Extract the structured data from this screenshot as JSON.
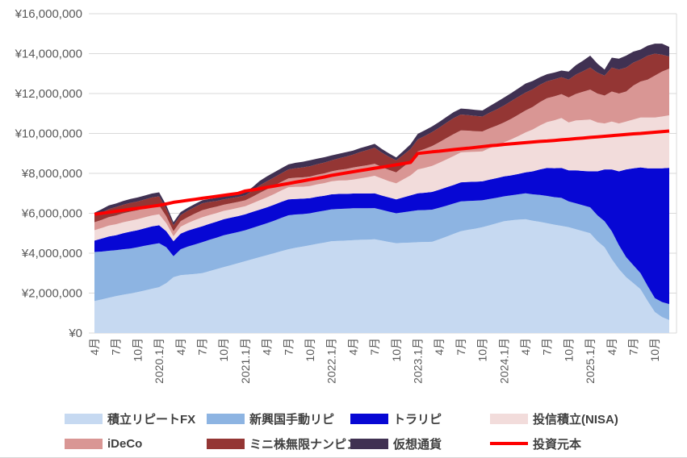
{
  "chart_data": {
    "type": "area",
    "subtype": "stacked-area-with-line",
    "title": "",
    "unit": "million_yen",
    "y_axis": {
      "min": 0,
      "max": 16000000,
      "step": 2000000,
      "tick_labels": [
        "¥0",
        "¥2,000,000",
        "¥4,000,000",
        "¥6,000,000",
        "¥8,000,000",
        "¥10,000,000",
        "¥12,000,000",
        "¥14,000,000",
        "¥16,000,000"
      ],
      "grid": true
    },
    "x_axis": {
      "start_month": "2019-04",
      "end_month": "2025-12",
      "points": 81,
      "tick_positions": [
        0,
        3,
        6,
        9,
        12,
        15,
        18,
        21,
        24,
        27,
        30,
        33,
        36,
        39,
        42,
        45,
        48,
        51,
        54,
        57,
        60,
        63,
        66,
        69,
        72,
        75,
        78
      ],
      "tick_labels": [
        "4月",
        "7月",
        "10月",
        "2020.1月",
        "4月",
        "7月",
        "10月",
        "2021.1月",
        "4月",
        "7月",
        "10月",
        "2022.1月",
        "4月",
        "7月",
        "10月",
        "2023.1月",
        "4月",
        "7月",
        "10月",
        "2024.1月",
        "4月",
        "7月",
        "10月",
        "2025.1月",
        "4月",
        "7月",
        "10月"
      ]
    },
    "series": [
      {
        "key": "fx_repeat",
        "label": "積立リピートFX",
        "color": "#c6d9f1",
        "values": [
          1.6,
          1.68,
          1.77,
          1.85,
          1.92,
          1.98,
          2.05,
          2.13,
          2.22,
          2.3,
          2.5,
          2.8,
          2.9,
          2.93,
          2.96,
          3.0,
          3.1,
          3.2,
          3.3,
          3.4,
          3.5,
          3.6,
          3.7,
          3.8,
          3.9,
          4.0,
          4.1,
          4.2,
          4.27,
          4.33,
          4.4,
          4.47,
          4.53,
          4.6,
          4.62,
          4.63,
          4.65,
          4.67,
          4.68,
          4.7,
          4.63,
          4.56,
          4.5,
          4.52,
          4.53,
          4.55,
          4.56,
          4.57,
          4.7,
          4.83,
          4.97,
          5.1,
          5.17,
          5.23,
          5.3,
          5.4,
          5.5,
          5.6,
          5.65,
          5.68,
          5.7,
          5.63,
          5.57,
          5.5,
          5.43,
          5.37,
          5.3,
          5.2,
          5.1,
          5.0,
          4.6,
          4.3,
          3.7,
          3.2,
          2.8,
          2.5,
          2.2,
          1.6,
          1.05,
          0.8,
          0.65
        ]
      },
      {
        "key": "emerging_repeat",
        "label": "新興国手動リピ",
        "color": "#8db4e2",
        "values": [
          2.46,
          2.4,
          2.35,
          2.3,
          2.28,
          2.25,
          2.25,
          2.24,
          2.22,
          2.2,
          1.8,
          1.05,
          1.3,
          1.4,
          1.48,
          1.55,
          1.57,
          1.58,
          1.6,
          1.58,
          1.56,
          1.55,
          1.57,
          1.58,
          1.6,
          1.63,
          1.67,
          1.7,
          1.67,
          1.63,
          1.6,
          1.6,
          1.6,
          1.6,
          1.6,
          1.6,
          1.6,
          1.58,
          1.57,
          1.56,
          1.54,
          1.52,
          1.5,
          1.53,
          1.57,
          1.6,
          1.6,
          1.61,
          1.58,
          1.55,
          1.52,
          1.5,
          1.45,
          1.4,
          1.35,
          1.32,
          1.28,
          1.25,
          1.25,
          1.27,
          1.3,
          1.32,
          1.35,
          1.37,
          1.38,
          1.4,
          1.3,
          1.3,
          1.3,
          1.3,
          1.3,
          1.3,
          1.4,
          1.2,
          1.0,
          0.9,
          0.8,
          0.75,
          0.7,
          0.75,
          0.8
        ]
      },
      {
        "key": "toraripi",
        "label": "トラリピ",
        "color": "#0707d4",
        "values": [
          0.57,
          0.65,
          0.72,
          0.75,
          0.8,
          0.85,
          0.85,
          0.88,
          0.9,
          0.9,
          0.8,
          0.75,
          0.78,
          0.8,
          0.8,
          0.8,
          0.8,
          0.8,
          0.8,
          0.8,
          0.8,
          0.8,
          0.8,
          0.8,
          0.8,
          0.8,
          0.8,
          0.8,
          0.78,
          0.77,
          0.76,
          0.76,
          0.75,
          0.75,
          0.75,
          0.74,
          0.74,
          0.74,
          0.74,
          0.74,
          0.72,
          0.71,
          0.7,
          0.75,
          0.8,
          0.85,
          0.87,
          0.89,
          0.9,
          0.92,
          0.93,
          0.95,
          0.95,
          0.95,
          0.95,
          0.97,
          0.98,
          1.0,
          1.0,
          1.02,
          1.05,
          1.15,
          1.28,
          1.4,
          1.45,
          1.5,
          1.55,
          1.65,
          1.72,
          1.8,
          2.2,
          2.6,
          3.1,
          3.7,
          4.4,
          4.85,
          5.3,
          5.9,
          6.5,
          6.7,
          6.83
        ]
      },
      {
        "key": "nisa",
        "label": "投信積立(NISA)",
        "color": "#f2dcdb",
        "values": [
          0.52,
          0.53,
          0.54,
          0.55,
          0.55,
          0.55,
          0.55,
          0.55,
          0.55,
          0.55,
          0.4,
          0.25,
          0.35,
          0.38,
          0.42,
          0.45,
          0.44,
          0.43,
          0.42,
          0.41,
          0.41,
          0.4,
          0.43,
          0.47,
          0.5,
          0.53,
          0.57,
          0.6,
          0.6,
          0.6,
          0.6,
          0.62,
          0.63,
          0.65,
          0.67,
          0.68,
          0.7,
          0.76,
          0.82,
          0.88,
          0.85,
          0.82,
          0.8,
          0.9,
          1.0,
          1.2,
          1.25,
          1.3,
          1.35,
          1.4,
          1.45,
          1.5,
          1.5,
          1.5,
          1.5,
          1.57,
          1.63,
          1.7,
          1.8,
          1.9,
          2.0,
          2.1,
          2.2,
          2.3,
          2.4,
          2.5,
          2.4,
          2.5,
          2.55,
          2.6,
          2.45,
          2.3,
          2.4,
          2.4,
          2.4,
          2.45,
          2.5,
          2.55,
          2.55,
          2.6,
          2.63
        ]
      },
      {
        "key": "ideco",
        "label": "iDeCo",
        "color": "#d99694",
        "values": [
          0.4,
          0.41,
          0.43,
          0.44,
          0.45,
          0.45,
          0.45,
          0.45,
          0.45,
          0.45,
          0.35,
          0.25,
          0.28,
          0.3,
          0.33,
          0.35,
          0.34,
          0.32,
          0.31,
          0.31,
          0.3,
          0.3,
          0.33,
          0.37,
          0.4,
          0.42,
          0.43,
          0.45,
          0.46,
          0.47,
          0.48,
          0.48,
          0.49,
          0.5,
          0.53,
          0.57,
          0.6,
          0.6,
          0.6,
          0.6,
          0.58,
          0.56,
          0.55,
          0.63,
          0.72,
          0.9,
          0.95,
          1.0,
          1.03,
          1.07,
          1.1,
          1.1,
          1.07,
          1.03,
          1.0,
          1.0,
          1.0,
          1.0,
          1.03,
          1.07,
          1.1,
          1.13,
          1.17,
          1.2,
          1.2,
          1.2,
          1.25,
          1.33,
          1.42,
          1.5,
          1.45,
          1.4,
          1.5,
          1.5,
          1.5,
          1.7,
          1.8,
          1.9,
          2.1,
          2.25,
          2.34
        ]
      },
      {
        "key": "mini_kabu",
        "label": "ミニ株無限ナンピン",
        "color": "#943634",
        "values": [
          0.32,
          0.36,
          0.4,
          0.42,
          0.43,
          0.44,
          0.44,
          0.44,
          0.45,
          0.45,
          0.38,
          0.3,
          0.3,
          0.32,
          0.33,
          0.35,
          0.32,
          0.29,
          0.27,
          0.26,
          0.25,
          0.25,
          0.3,
          0.38,
          0.4,
          0.42,
          0.43,
          0.45,
          0.48,
          0.5,
          0.52,
          0.53,
          0.54,
          0.55,
          0.58,
          0.62,
          0.65,
          0.72,
          0.76,
          0.8,
          0.72,
          0.66,
          0.6,
          0.6,
          0.6,
          0.6,
          0.65,
          0.7,
          0.73,
          0.77,
          0.8,
          0.8,
          0.78,
          0.77,
          0.75,
          0.78,
          0.82,
          0.85,
          0.89,
          0.9,
          0.9,
          0.88,
          0.87,
          0.85,
          0.85,
          0.85,
          0.9,
          0.97,
          1.03,
          1.1,
          1.05,
          1.0,
          1.2,
          1.2,
          1.2,
          1.15,
          1.1,
          1.2,
          1.1,
          0.85,
          0.61
        ]
      },
      {
        "key": "crypto",
        "label": "仮想通貨",
        "color": "#403152",
        "values": [
          0.16,
          0.17,
          0.18,
          0.18,
          0.19,
          0.2,
          0.2,
          0.2,
          0.2,
          0.2,
          0.17,
          0.15,
          0.15,
          0.15,
          0.15,
          0.15,
          0.15,
          0.15,
          0.15,
          0.15,
          0.15,
          0.15,
          0.18,
          0.22,
          0.25,
          0.25,
          0.25,
          0.25,
          0.27,
          0.28,
          0.3,
          0.28,
          0.27,
          0.25,
          0.23,
          0.22,
          0.2,
          0.2,
          0.2,
          0.2,
          0.18,
          0.17,
          0.15,
          0.19,
          0.24,
          0.28,
          0.28,
          0.28,
          0.29,
          0.29,
          0.3,
          0.3,
          0.3,
          0.3,
          0.3,
          0.33,
          0.37,
          0.4,
          0.4,
          0.42,
          0.45,
          0.42,
          0.38,
          0.35,
          0.34,
          0.33,
          0.4,
          0.47,
          0.53,
          0.6,
          0.45,
          0.3,
          0.5,
          0.55,
          0.6,
          0.55,
          0.5,
          0.5,
          0.5,
          0.55,
          0.48
        ]
      }
    ],
    "line": {
      "key": "principal",
      "label": "投資元本",
      "color": "#fe0000",
      "width": 4,
      "values": [
        5.95,
        6.0,
        6.05,
        6.1,
        6.15,
        6.2,
        6.25,
        6.3,
        6.35,
        6.4,
        6.47,
        6.55,
        6.6,
        6.65,
        6.7,
        6.75,
        6.8,
        6.85,
        6.9,
        6.95,
        7.0,
        7.12,
        7.17,
        7.23,
        7.3,
        7.36,
        7.43,
        7.49,
        7.56,
        7.62,
        7.69,
        7.75,
        7.82,
        7.9,
        7.96,
        8.02,
        8.08,
        8.14,
        8.2,
        8.26,
        8.31,
        8.37,
        8.43,
        8.49,
        8.55,
        9.0,
        9.04,
        9.08,
        9.11,
        9.15,
        9.19,
        9.23,
        9.26,
        9.3,
        9.34,
        9.38,
        9.41,
        9.45,
        9.48,
        9.51,
        9.54,
        9.57,
        9.6,
        9.62,
        9.65,
        9.68,
        9.71,
        9.74,
        9.77,
        9.8,
        9.83,
        9.86,
        9.89,
        9.92,
        9.95,
        9.98,
        10.0,
        10.03,
        10.06,
        10.09,
        10.12
      ]
    },
    "legend": {
      "rows": 2,
      "items": [
        {
          "key": "fx_repeat",
          "label": "積立リピートFX",
          "swatch": "box",
          "color": "#c6d9f1"
        },
        {
          "key": "emerging_repeat",
          "label": "新興国手動リピ",
          "swatch": "box",
          "color": "#8db4e2"
        },
        {
          "key": "toraripi",
          "label": "トラリピ",
          "swatch": "box",
          "color": "#0707d4"
        },
        {
          "key": "nisa",
          "label": "投信積立(NISA)",
          "swatch": "box",
          "color": "#f2dcdb"
        },
        {
          "key": "ideco",
          "label": "iDeCo",
          "swatch": "box",
          "color": "#d99694"
        },
        {
          "key": "mini_kabu",
          "label": "ミニ株無限ナンピン",
          "swatch": "box",
          "color": "#943634"
        },
        {
          "key": "crypto",
          "label": "仮想通貨",
          "swatch": "box",
          "color": "#403152"
        },
        {
          "key": "principal",
          "label": "投資元本",
          "swatch": "line",
          "color": "#fe0000"
        }
      ]
    },
    "grid_color": "#d9d9d9",
    "axis_text_color": "#595959"
  }
}
